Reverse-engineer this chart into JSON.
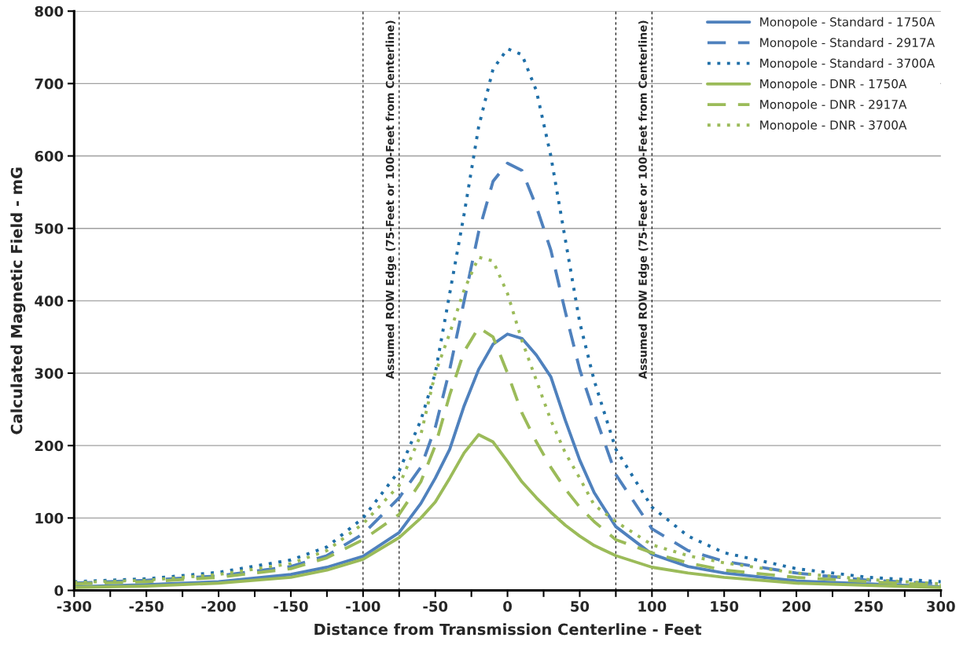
{
  "chart_data": {
    "type": "line",
    "xlabel": "Distance from Transmission Centerline - Feet",
    "ylabel": "Calculated Magnetic Field - mG",
    "x": [
      -300,
      -250,
      -200,
      -150,
      -125,
      -100,
      -75,
      -60,
      -50,
      -40,
      -30,
      -20,
      -10,
      0,
      10,
      20,
      30,
      40,
      50,
      60,
      75,
      100,
      125,
      150,
      200,
      250,
      300
    ],
    "series": [
      {
        "name": "Monopole - Standard - 1750A",
        "color": "#4f81bd",
        "line_style": "solid",
        "values": [
          5,
          8,
          12,
          22,
          32,
          47,
          80,
          120,
          155,
          195,
          255,
          305,
          340,
          354,
          348,
          325,
          295,
          235,
          180,
          135,
          88,
          50,
          33,
          24,
          13,
          9,
          5
        ]
      },
      {
        "name": "Monopole - Standard - 2917A",
        "color": "#4f81bd",
        "line_style": "dashed",
        "values": [
          10,
          14,
          20,
          33,
          48,
          78,
          128,
          170,
          225,
          305,
          400,
          495,
          565,
          590,
          580,
          530,
          470,
          385,
          305,
          245,
          160,
          85,
          55,
          40,
          24,
          14,
          9
        ]
      },
      {
        "name": "Monopole - Standard - 3700A",
        "color": "#1f6fa8",
        "line_style": "dotted",
        "values": [
          12,
          16,
          25,
          42,
          60,
          100,
          165,
          235,
          300,
          410,
          520,
          640,
          720,
          748,
          740,
          690,
          600,
          485,
          370,
          290,
          195,
          115,
          75,
          52,
          30,
          18,
          12
        ]
      },
      {
        "name": "Monopole - DNR - 1750A",
        "color": "#9bbb59",
        "line_style": "solid",
        "values": [
          4,
          6,
          10,
          18,
          28,
          43,
          73,
          100,
          122,
          155,
          190,
          215,
          205,
          178,
          150,
          128,
          108,
          90,
          75,
          62,
          48,
          32,
          24,
          18,
          10,
          7,
          4
        ]
      },
      {
        "name": "Monopole - DNR - 2917A",
        "color": "#9bbb59",
        "line_style": "dashed",
        "values": [
          9,
          12,
          18,
          30,
          45,
          70,
          105,
          150,
          200,
          270,
          330,
          363,
          350,
          300,
          245,
          205,
          170,
          140,
          115,
          95,
          70,
          52,
          38,
          28,
          18,
          12,
          7
        ]
      },
      {
        "name": "Monopole - DNR - 3700A",
        "color": "#9bbb59",
        "line_style": "dotted",
        "values": [
          11,
          14,
          22,
          37,
          55,
          92,
          145,
          215,
          300,
          355,
          415,
          460,
          455,
          410,
          345,
          290,
          235,
          190,
          155,
          118,
          95,
          63,
          48,
          38,
          24,
          15,
          9
        ]
      }
    ],
    "xlim": [
      -300,
      300
    ],
    "xticks": [
      -300,
      {
        "value": -275,
        "label": null
      },
      -250,
      {
        "value": -225,
        "label": null
      },
      -200,
      {
        "value": -175,
        "label": null
      },
      -150,
      {
        "value": -125,
        "label": null
      },
      -100,
      {
        "value": -75,
        "label": null
      },
      -50,
      {
        "value": -25,
        "label": null
      },
      0,
      {
        "value": 25,
        "label": null
      },
      50,
      {
        "value": 75,
        "label": null
      },
      100,
      {
        "value": 125,
        "label": null
      },
      150,
      {
        "value": 175,
        "label": null
      },
      200,
      {
        "value": 225,
        "label": null
      },
      250,
      {
        "value": 275,
        "label": null
      },
      300
    ],
    "ylim": [
      0,
      800
    ],
    "yticks": [
      0,
      100,
      200,
      300,
      400,
      500,
      600,
      700,
      800
    ],
    "ref_lines": [
      {
        "axis": "x",
        "value": -100,
        "line_style": "dashed",
        "color": "#000000"
      },
      {
        "axis": "x",
        "value": -75,
        "line_style": "dashed",
        "color": "#000000",
        "label": "Assumed ROW Edge (75-Feet or 100-Feet from Centerline)"
      },
      {
        "axis": "x",
        "value": 75,
        "line_style": "dashed",
        "color": "#000000"
      },
      {
        "axis": "x",
        "value": 100,
        "line_style": "dashed",
        "color": "#000000",
        "label": "Assumed ROW Edge (75-Feet or 100-Feet from Centerline)"
      }
    ],
    "grid": "y",
    "legend": "top right"
  }
}
